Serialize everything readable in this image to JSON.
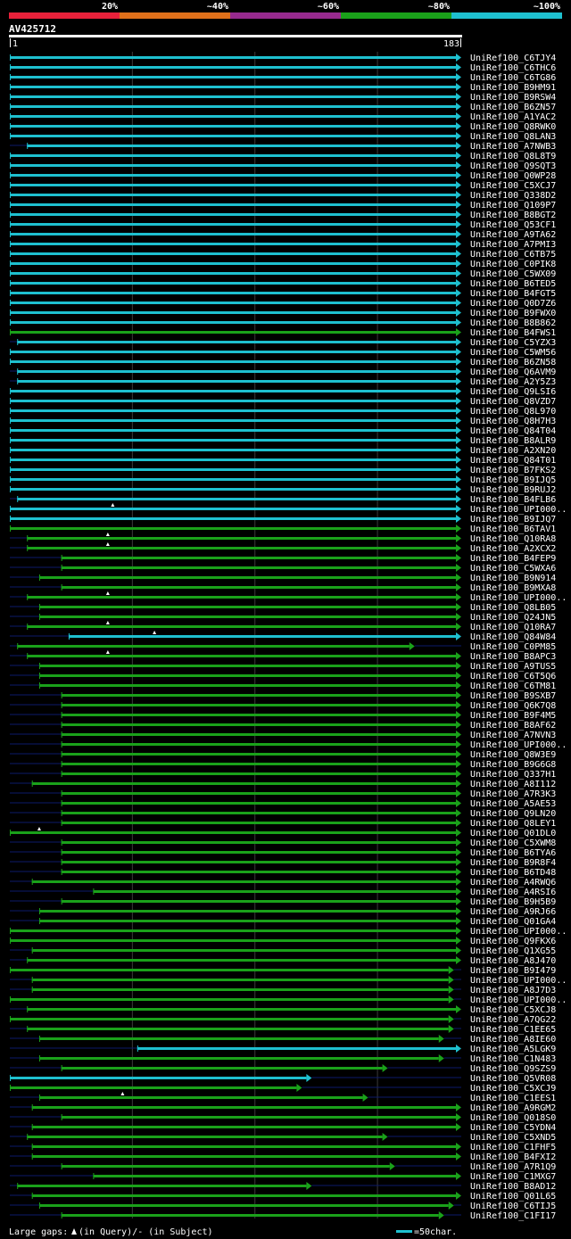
{
  "legend_scale": [
    {
      "label": "20%",
      "color": "#e8213a"
    },
    {
      "label": "~40%",
      "color": "#e0701a"
    },
    {
      "label": "~60%",
      "color": "#972a8e"
    },
    {
      "label": "~80%",
      "color": "#1aa11a"
    },
    {
      "label": "~100%",
      "color": "#1ec0cf"
    }
  ],
  "query": {
    "name": "AV425712",
    "start": "1",
    "end": "183",
    "length": 183
  },
  "colors": {
    "cyan": "#1ec0cf",
    "green": "#1aa11a",
    "gap": "#0c1a6a",
    "grid": "#3a3a3a"
  },
  "footer": {
    "gaps_label": "Large gaps:",
    "gaps_text": "(in Query)/- (in Subject)",
    "scale_text": "=50char."
  },
  "chart_data": {
    "type": "alignment",
    "query_length": 183,
    "hits": [
      {
        "name": "UniRef100_C6TJY4",
        "start": 1,
        "end": 183,
        "identity": "~100%"
      },
      {
        "name": "UniRef100_C6THC6",
        "start": 1,
        "end": 183,
        "identity": "~100%"
      },
      {
        "name": "UniRef100_C6TG86",
        "start": 1,
        "end": 183,
        "identity": "~100%"
      },
      {
        "name": "UniRef100_B9HM91",
        "start": 1,
        "end": 183,
        "identity": "~100%"
      },
      {
        "name": "UniRef100_B9RSW4",
        "start": 1,
        "end": 183,
        "identity": "~100%"
      },
      {
        "name": "UniRef100_B6ZN57",
        "start": 1,
        "end": 183,
        "identity": "~100%"
      },
      {
        "name": "UniRef100_A1YAC2",
        "start": 1,
        "end": 183,
        "identity": "~100%"
      },
      {
        "name": "UniRef100_Q8RWK0",
        "start": 1,
        "end": 183,
        "identity": "~100%"
      },
      {
        "name": "UniRef100_Q8LAN3",
        "start": 1,
        "end": 183,
        "identity": "~100%"
      },
      {
        "name": "UniRef100_A7NWB3",
        "start": 8,
        "end": 183,
        "identity": "~100%"
      },
      {
        "name": "UniRef100_Q8L8T9",
        "start": 1,
        "end": 183,
        "identity": "~100%"
      },
      {
        "name": "UniRef100_Q9SQT3",
        "start": 1,
        "end": 183,
        "identity": "~100%"
      },
      {
        "name": "UniRef100_Q0WP28",
        "start": 1,
        "end": 183,
        "identity": "~100%"
      },
      {
        "name": "UniRef100_C5XCJ7",
        "start": 1,
        "end": 183,
        "identity": "~100%"
      },
      {
        "name": "UniRef100_Q338D2",
        "start": 1,
        "end": 183,
        "identity": "~100%"
      },
      {
        "name": "UniRef100_Q109P7",
        "start": 1,
        "end": 183,
        "identity": "~100%"
      },
      {
        "name": "UniRef100_B8BGT2",
        "start": 1,
        "end": 183,
        "identity": "~100%"
      },
      {
        "name": "UniRef100_Q53CF1",
        "start": 1,
        "end": 183,
        "identity": "~100%"
      },
      {
        "name": "UniRef100_A9TA62",
        "start": 1,
        "end": 183,
        "identity": "~100%"
      },
      {
        "name": "UniRef100_A7PMI3",
        "start": 1,
        "end": 183,
        "identity": "~100%"
      },
      {
        "name": "UniRef100_C6TB75",
        "start": 1,
        "end": 183,
        "identity": "~100%"
      },
      {
        "name": "UniRef100_C0PIK8",
        "start": 1,
        "end": 183,
        "identity": "~100%"
      },
      {
        "name": "UniRef100_C5WX09",
        "start": 1,
        "end": 183,
        "identity": "~100%"
      },
      {
        "name": "UniRef100_B6TED5",
        "start": 1,
        "end": 183,
        "identity": "~100%"
      },
      {
        "name": "UniRef100_B4FGT5",
        "start": 1,
        "end": 183,
        "identity": "~100%"
      },
      {
        "name": "UniRef100_Q0D7Z6",
        "start": 1,
        "end": 183,
        "identity": "~100%"
      },
      {
        "name": "UniRef100_B9FWX0",
        "start": 1,
        "end": 183,
        "identity": "~100%"
      },
      {
        "name": "UniRef100_B8B862",
        "start": 1,
        "end": 183,
        "identity": "~100%"
      },
      {
        "name": "UniRef100_B4FWS1",
        "start": 1,
        "end": 183,
        "identity": "~80%"
      },
      {
        "name": "UniRef100_C5YZX3",
        "start": 4,
        "end": 183,
        "identity": "~100%"
      },
      {
        "name": "UniRef100_C5WM56",
        "start": 1,
        "end": 183,
        "identity": "~100%"
      },
      {
        "name": "UniRef100_B6ZN58",
        "start": 1,
        "end": 183,
        "identity": "~100%"
      },
      {
        "name": "UniRef100_Q6AVM9",
        "start": 4,
        "end": 183,
        "identity": "~100%"
      },
      {
        "name": "UniRef100_A2Y5Z3",
        "start": 4,
        "end": 183,
        "identity": "~100%"
      },
      {
        "name": "UniRef100_Q9LSI6",
        "start": 1,
        "end": 183,
        "identity": "~100%"
      },
      {
        "name": "UniRef100_Q8VZD7",
        "start": 1,
        "end": 183,
        "identity": "~100%"
      },
      {
        "name": "UniRef100_Q8L970",
        "start": 1,
        "end": 183,
        "identity": "~100%"
      },
      {
        "name": "UniRef100_Q8H7H3",
        "start": 1,
        "end": 183,
        "identity": "~100%"
      },
      {
        "name": "UniRef100_Q84T04",
        "start": 1,
        "end": 183,
        "identity": "~100%"
      },
      {
        "name": "UniRef100_B8ALR9",
        "start": 1,
        "end": 183,
        "identity": "~100%"
      },
      {
        "name": "UniRef100_A2XN20",
        "start": 1,
        "end": 183,
        "identity": "~100%"
      },
      {
        "name": "UniRef100_Q84T01",
        "start": 1,
        "end": 183,
        "identity": "~100%"
      },
      {
        "name": "UniRef100_B7FKS2",
        "start": 1,
        "end": 183,
        "identity": "~100%"
      },
      {
        "name": "UniRef100_B9IJQ5",
        "start": 1,
        "end": 183,
        "identity": "~100%"
      },
      {
        "name": "UniRef100_B9RUJ2",
        "start": 1,
        "end": 183,
        "identity": "~100%"
      },
      {
        "name": "UniRef100_B4FLB6",
        "start": 4,
        "end": 183,
        "identity": "~100%"
      },
      {
        "name": "UniRef100_UPI000..",
        "start": 1,
        "end": 183,
        "identity": "~100%",
        "query_gap": 43
      },
      {
        "name": "UniRef100_B9IJQ7",
        "start": 1,
        "end": 183,
        "identity": "~100%"
      },
      {
        "name": "UniRef100_B6TAV1",
        "start": 1,
        "end": 183,
        "identity": "~80%"
      },
      {
        "name": "UniRef100_Q10RA8",
        "start": 8,
        "end": 183,
        "identity": "~80%",
        "query_gap": 41
      },
      {
        "name": "UniRef100_A2XCX2",
        "start": 8,
        "end": 183,
        "identity": "~80%",
        "query_gap": 41
      },
      {
        "name": "UniRef100_B4FEP9",
        "start": 22,
        "end": 183,
        "identity": "~80%"
      },
      {
        "name": "UniRef100_C5WXA6",
        "start": 22,
        "end": 183,
        "identity": "~80%"
      },
      {
        "name": "UniRef100_B9N914",
        "start": 13,
        "end": 183,
        "identity": "~80%"
      },
      {
        "name": "UniRef100_B9MXA8",
        "start": 22,
        "end": 183,
        "identity": "~80%"
      },
      {
        "name": "UniRef100_UPI000..",
        "start": 8,
        "end": 183,
        "identity": "~80%",
        "query_gap": 41
      },
      {
        "name": "UniRef100_Q8LB05",
        "start": 13,
        "end": 183,
        "identity": "~80%"
      },
      {
        "name": "UniRef100_Q24JN5",
        "start": 13,
        "end": 183,
        "identity": "~80%"
      },
      {
        "name": "UniRef100_Q10RA7",
        "start": 8,
        "end": 183,
        "identity": "~80%",
        "query_gap": 41
      },
      {
        "name": "UniRef100_Q84W84",
        "start": 25,
        "end": 183,
        "identity": "~100%",
        "query_gap": 60
      },
      {
        "name": "UniRef100_C0PM85",
        "start": 4,
        "end": 164,
        "identity": "~80%"
      },
      {
        "name": "UniRef100_B8APC3",
        "start": 8,
        "end": 183,
        "identity": "~80%",
        "query_gap": 41
      },
      {
        "name": "UniRef100_A9TUS5",
        "start": 13,
        "end": 183,
        "identity": "~80%"
      },
      {
        "name": "UniRef100_C6T5Q6",
        "start": 13,
        "end": 183,
        "identity": "~80%"
      },
      {
        "name": "UniRef100_C6TM81",
        "start": 13,
        "end": 183,
        "identity": "~80%"
      },
      {
        "name": "UniRef100_B9SXB7",
        "start": 22,
        "end": 183,
        "identity": "~80%"
      },
      {
        "name": "UniRef100_Q6K7Q8",
        "start": 22,
        "end": 183,
        "identity": "~80%"
      },
      {
        "name": "UniRef100_B9F4M5",
        "start": 22,
        "end": 183,
        "identity": "~80%"
      },
      {
        "name": "UniRef100_B8AF62",
        "start": 22,
        "end": 183,
        "identity": "~80%"
      },
      {
        "name": "UniRef100_A7NVN3",
        "start": 22,
        "end": 183,
        "identity": "~80%"
      },
      {
        "name": "UniRef100_UPI000..",
        "start": 22,
        "end": 183,
        "identity": "~80%"
      },
      {
        "name": "UniRef100_Q8W3E9",
        "start": 22,
        "end": 183,
        "identity": "~80%"
      },
      {
        "name": "UniRef100_B9G6G8",
        "start": 22,
        "end": 183,
        "identity": "~80%"
      },
      {
        "name": "UniRef100_Q337H1",
        "start": 22,
        "end": 183,
        "identity": "~80%"
      },
      {
        "name": "UniRef100_A8I112",
        "start": 10,
        "end": 183,
        "identity": "~80%"
      },
      {
        "name": "UniRef100_A7R3K3",
        "start": 22,
        "end": 183,
        "identity": "~80%"
      },
      {
        "name": "UniRef100_A5AE53",
        "start": 22,
        "end": 183,
        "identity": "~80%"
      },
      {
        "name": "UniRef100_Q9LN20",
        "start": 22,
        "end": 183,
        "identity": "~80%"
      },
      {
        "name": "UniRef100_Q8LEY1",
        "start": 22,
        "end": 183,
        "identity": "~80%"
      },
      {
        "name": "UniRef100_Q01DL0",
        "start": 1,
        "end": 183,
        "identity": "~80%",
        "query_gap": 13
      },
      {
        "name": "UniRef100_C5XWM8",
        "start": 22,
        "end": 183,
        "identity": "~80%"
      },
      {
        "name": "UniRef100_B6TYA6",
        "start": 22,
        "end": 183,
        "identity": "~80%"
      },
      {
        "name": "UniRef100_B9R8F4",
        "start": 22,
        "end": 183,
        "identity": "~80%"
      },
      {
        "name": "UniRef100_B6TD48",
        "start": 22,
        "end": 183,
        "identity": "~80%"
      },
      {
        "name": "UniRef100_A4RWQ6",
        "start": 10,
        "end": 183,
        "identity": "~80%"
      },
      {
        "name": "UniRef100_A4RSI6",
        "start": 35,
        "end": 183,
        "identity": "~80%"
      },
      {
        "name": "UniRef100_B9H5B9",
        "start": 22,
        "end": 183,
        "identity": "~80%"
      },
      {
        "name": "UniRef100_A9RJ66",
        "start": 13,
        "end": 183,
        "identity": "~80%"
      },
      {
        "name": "UniRef100_Q01GA4",
        "start": 13,
        "end": 183,
        "identity": "~80%"
      },
      {
        "name": "UniRef100_UPI000..",
        "start": 1,
        "end": 183,
        "identity": "~80%"
      },
      {
        "name": "UniRef100_Q9FKX6",
        "start": 1,
        "end": 183,
        "identity": "~80%"
      },
      {
        "name": "UniRef100_Q1XG55",
        "start": 10,
        "end": 183,
        "identity": "~80%"
      },
      {
        "name": "UniRef100_A8J470",
        "start": 8,
        "end": 183,
        "identity": "~80%"
      },
      {
        "name": "UniRef100_B9I479",
        "start": 1,
        "end": 180,
        "identity": "~80%"
      },
      {
        "name": "UniRef100_UPI000..",
        "start": 10,
        "end": 180,
        "identity": "~80%"
      },
      {
        "name": "UniRef100_A8J7D3",
        "start": 10,
        "end": 180,
        "identity": "~80%"
      },
      {
        "name": "UniRef100_UPI000..",
        "start": 1,
        "end": 180,
        "identity": "~80%"
      },
      {
        "name": "UniRef100_C5XCJ8",
        "start": 8,
        "end": 183,
        "identity": "~80%"
      },
      {
        "name": "UniRef100_A7QG22",
        "start": 1,
        "end": 180,
        "identity": "~80%"
      },
      {
        "name": "UniRef100_C1EE65",
        "start": 8,
        "end": 180,
        "identity": "~80%"
      },
      {
        "name": "UniRef100_A8IE60",
        "start": 13,
        "end": 176,
        "identity": "~80%"
      },
      {
        "name": "UniRef100_A5LGK9",
        "start": 53,
        "end": 183,
        "identity": "~100%"
      },
      {
        "name": "UniRef100_C1N483",
        "start": 13,
        "end": 176,
        "identity": "~80%"
      },
      {
        "name": "UniRef100_Q9SZS9",
        "start": 22,
        "end": 153,
        "identity": "~80%"
      },
      {
        "name": "UniRef100_Q5VR08",
        "start": 1,
        "end": 122,
        "identity": "~100%"
      },
      {
        "name": "UniRef100_C5XCJ9",
        "start": 1,
        "end": 118,
        "identity": "~80%"
      },
      {
        "name": "UniRef100_C1EES1",
        "start": 13,
        "end": 145,
        "identity": "~80%",
        "query_gap": 47
      },
      {
        "name": "UniRef100_A9RGM2",
        "start": 10,
        "end": 183,
        "identity": "~80%"
      },
      {
        "name": "UniRef100_Q018S0",
        "start": 22,
        "end": 183,
        "identity": "~80%"
      },
      {
        "name": "UniRef100_C5YDN4",
        "start": 10,
        "end": 183,
        "identity": "~80%"
      },
      {
        "name": "UniRef100_C5XND5",
        "start": 8,
        "end": 153,
        "identity": "~80%"
      },
      {
        "name": "UniRef100_C1FHF5",
        "start": 10,
        "end": 183,
        "identity": "~80%"
      },
      {
        "name": "UniRef100_B4FXI2",
        "start": 10,
        "end": 183,
        "identity": "~80%"
      },
      {
        "name": "UniRef100_A7R1Q9",
        "start": 22,
        "end": 156,
        "identity": "~80%"
      },
      {
        "name": "UniRef100_C1MXG7",
        "start": 35,
        "end": 183,
        "identity": "~80%"
      },
      {
        "name": "UniRef100_B8AD12",
        "start": 4,
        "end": 122,
        "identity": "~80%"
      },
      {
        "name": "UniRef100_Q01L65",
        "start": 10,
        "end": 183,
        "identity": "~80%"
      },
      {
        "name": "UniRef100_C6TIJ5",
        "start": 13,
        "end": 180,
        "identity": "~80%"
      },
      {
        "name": "UniRef100_C1FI17",
        "start": 22,
        "end": 176,
        "identity": "~80%"
      }
    ]
  }
}
